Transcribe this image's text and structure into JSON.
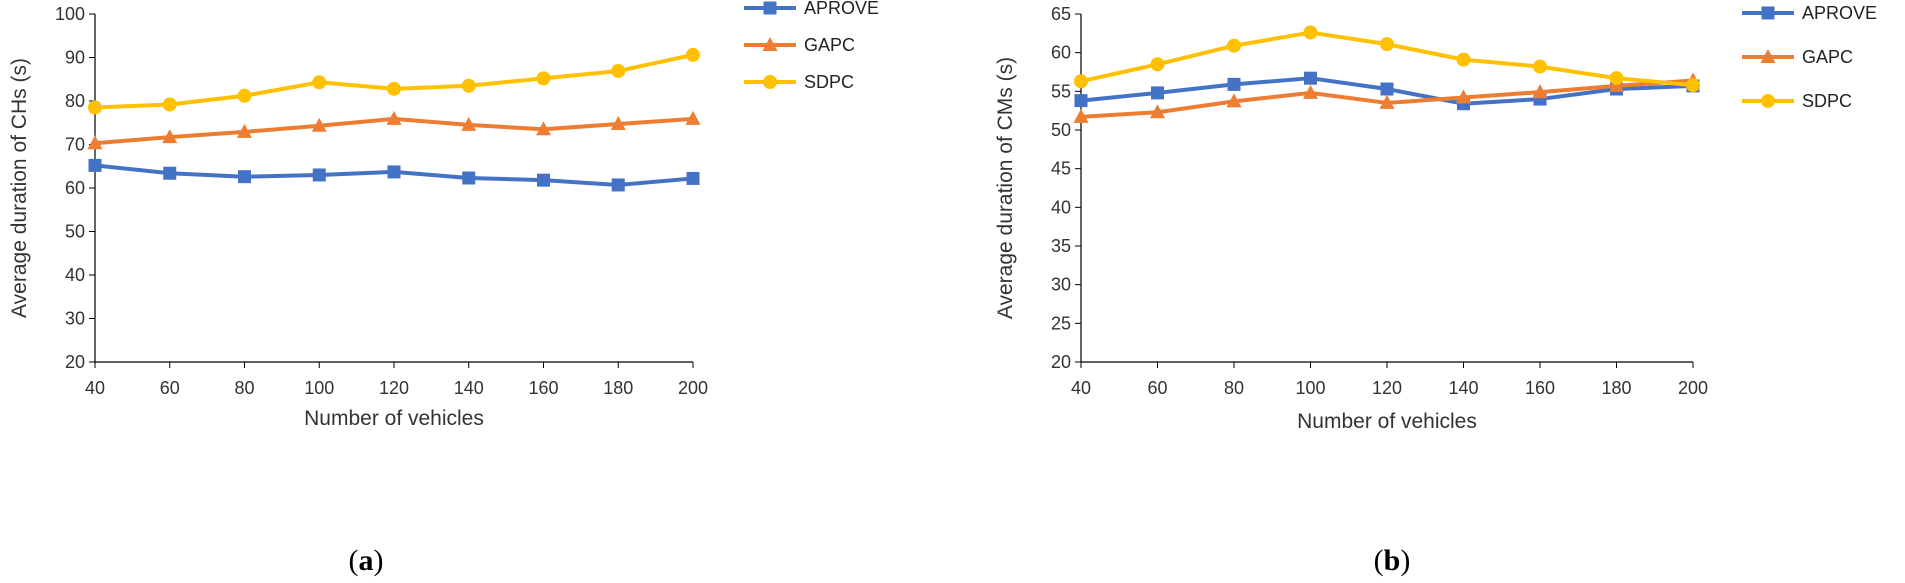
{
  "figure": {
    "panel_a_caption": "a",
    "panel_b_caption": "b"
  },
  "chart_data": [
    {
      "type": "line",
      "panel": "a",
      "title": "",
      "xlabel": "Number of vehicles",
      "ylabel": "Average duration of CHs (s)",
      "x": [
        40,
        60,
        80,
        100,
        120,
        140,
        160,
        180,
        200
      ],
      "ylim": [
        20,
        100
      ],
      "yticks": [
        20,
        30,
        40,
        50,
        60,
        70,
        80,
        90,
        100
      ],
      "grid": false,
      "legend_position": "right",
      "series": [
        {
          "name": "APROVE",
          "color": "#4472C4",
          "marker": "square",
          "values": [
            65.2,
            63.4,
            62.6,
            63.0,
            63.7,
            62.3,
            61.8,
            60.7,
            62.2
          ]
        },
        {
          "name": "GAPC",
          "color": "#ED7D31",
          "marker": "triangle",
          "values": [
            70.3,
            71.7,
            72.9,
            74.3,
            75.9,
            74.5,
            73.5,
            74.7,
            75.9
          ]
        },
        {
          "name": "SDPC",
          "color": "#FFC000",
          "marker": "circle",
          "values": [
            78.5,
            79.2,
            81.2,
            84.3,
            82.8,
            83.5,
            85.2,
            86.9,
            90.6
          ]
        }
      ]
    },
    {
      "type": "line",
      "panel": "b",
      "title": "",
      "xlabel": "Number of vehicles",
      "ylabel": "Average duration of CMs (s)",
      "x": [
        40,
        60,
        80,
        100,
        120,
        140,
        160,
        180,
        200
      ],
      "ylim": [
        20,
        65
      ],
      "yticks": [
        20,
        25,
        30,
        35,
        40,
        45,
        50,
        55,
        60,
        65
      ],
      "grid": false,
      "legend_position": "right",
      "series": [
        {
          "name": "APROVE",
          "color": "#4472C4",
          "marker": "square",
          "values": [
            53.8,
            54.8,
            55.9,
            56.7,
            55.3,
            53.4,
            54.0,
            55.3,
            55.7
          ]
        },
        {
          "name": "GAPC",
          "color": "#ED7D31",
          "marker": "triangle",
          "values": [
            51.7,
            52.3,
            53.7,
            54.8,
            53.5,
            54.2,
            54.9,
            55.7,
            56.4
          ]
        },
        {
          "name": "SDPC",
          "color": "#FFC000",
          "marker": "circle",
          "values": [
            56.3,
            58.5,
            60.9,
            62.6,
            61.1,
            59.1,
            58.2,
            56.7,
            55.8
          ]
        }
      ]
    }
  ]
}
